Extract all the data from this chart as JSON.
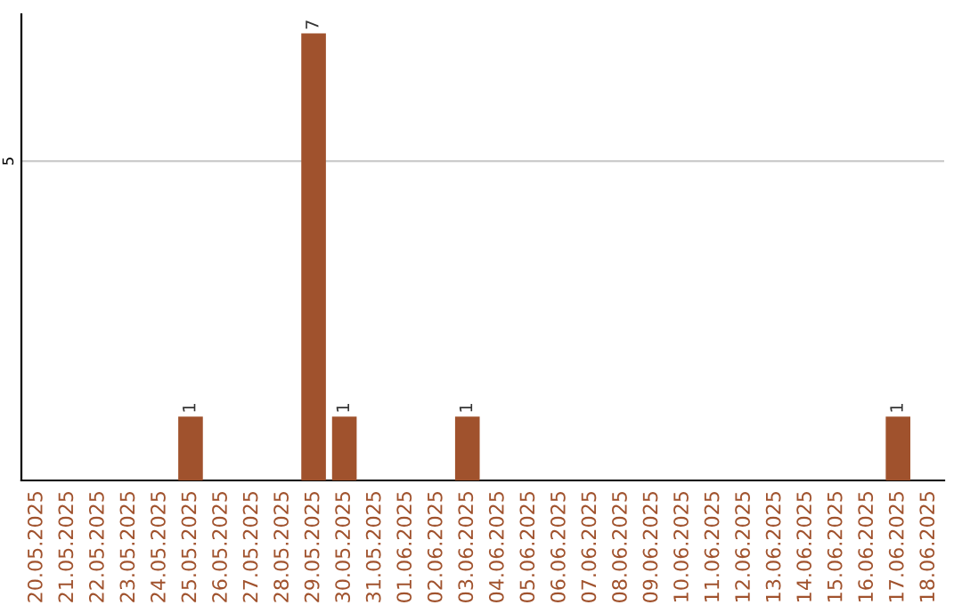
{
  "chart_data": {
    "type": "bar",
    "categories": [
      "20.05.2025",
      "21.05.2025",
      "22.05.2025",
      "23.05.2025",
      "24.05.2025",
      "25.05.2025",
      "26.05.2025",
      "27.05.2025",
      "28.05.2025",
      "29.05.2025",
      "30.05.2025",
      "31.05.2025",
      "01.06.2025",
      "02.06.2025",
      "03.06.2025",
      "04.06.2025",
      "05.06.2025",
      "06.06.2025",
      "07.06.2025",
      "08.06.2025",
      "09.06.2025",
      "10.06.2025",
      "11.06.2025",
      "12.06.2025",
      "13.06.2025",
      "14.06.2025",
      "15.06.2025",
      "16.06.2025",
      "17.06.2025",
      "18.06.2025"
    ],
    "values": [
      0,
      0,
      0,
      0,
      0,
      1,
      0,
      0,
      0,
      7,
      1,
      0,
      0,
      0,
      1,
      0,
      0,
      0,
      0,
      0,
      0,
      0,
      0,
      0,
      0,
      0,
      0,
      0,
      1,
      0
    ],
    "value_labels": [
      null,
      null,
      null,
      null,
      null,
      "1",
      null,
      null,
      null,
      "7",
      "1",
      null,
      null,
      null,
      "1",
      null,
      null,
      null,
      null,
      null,
      null,
      null,
      null,
      null,
      null,
      null,
      null,
      null,
      "1",
      null
    ],
    "color": "#a0522d",
    "ylim": [
      0,
      7.3
    ],
    "yticks": [
      5
    ],
    "grid": "y"
  }
}
